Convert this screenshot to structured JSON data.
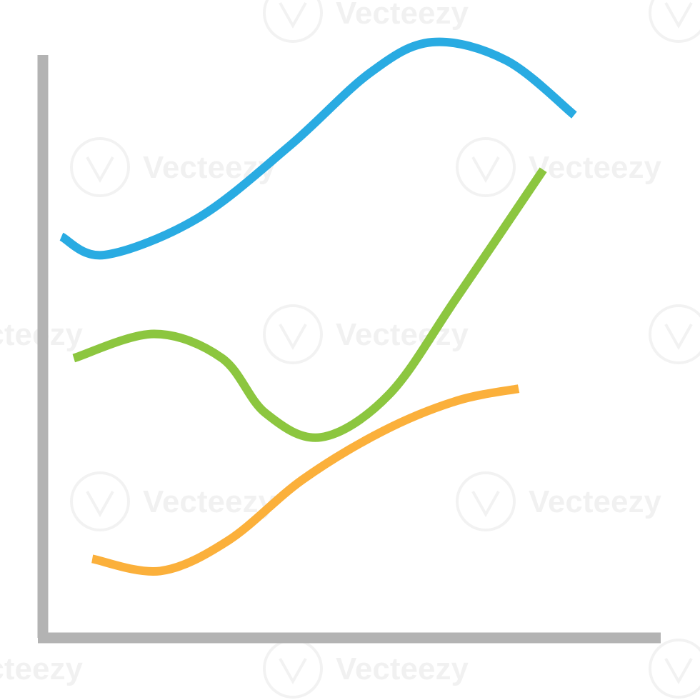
{
  "chart_data": {
    "type": "line",
    "title": "",
    "xlabel": "",
    "ylabel": "",
    "xlim": [
      0,
      10
    ],
    "ylim": [
      0,
      10
    ],
    "grid": false,
    "legend": "none",
    "axis_color": "#b3b3b3",
    "series": [
      {
        "color": "#29abe2",
        "points": [
          [
            0.3,
            6.6
          ],
          [
            1.0,
            6.3
          ],
          [
            2.5,
            6.9
          ],
          [
            4.0,
            8.1
          ],
          [
            5.3,
            9.3
          ],
          [
            6.3,
            9.8
          ],
          [
            7.5,
            9.5
          ],
          [
            8.6,
            8.6
          ]
        ]
      },
      {
        "color": "#8cc63f",
        "points": [
          [
            0.5,
            4.6
          ],
          [
            1.8,
            5.0
          ],
          [
            2.9,
            4.6
          ],
          [
            3.6,
            3.7
          ],
          [
            4.5,
            3.3
          ],
          [
            5.6,
            4.0
          ],
          [
            6.7,
            5.6
          ],
          [
            8.1,
            7.7
          ]
        ]
      },
      {
        "color": "#fbb03b",
        "points": [
          [
            0.8,
            1.3
          ],
          [
            1.9,
            1.1
          ],
          [
            3.0,
            1.6
          ],
          [
            4.2,
            2.6
          ],
          [
            5.5,
            3.4
          ],
          [
            6.7,
            3.9
          ],
          [
            7.7,
            4.1
          ]
        ]
      }
    ]
  },
  "watermark": {
    "text": "Vecteezy"
  }
}
